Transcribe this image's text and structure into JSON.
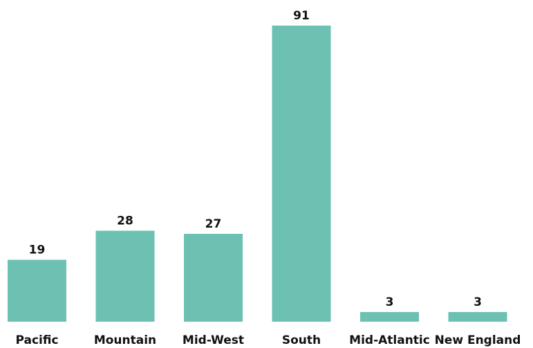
{
  "chart_data": {
    "type": "bar",
    "categories": [
      "Pacific",
      "Mountain",
      "Mid-West",
      "South",
      "Mid-Atlantic",
      "New England"
    ],
    "values": [
      19,
      28,
      27,
      91,
      3,
      3
    ],
    "title": "",
    "xlabel": "",
    "ylabel": "",
    "ylim": [
      0,
      91
    ],
    "grid": false,
    "legend": "none",
    "bar_color": "#6cc1b3",
    "data_labels": true
  }
}
